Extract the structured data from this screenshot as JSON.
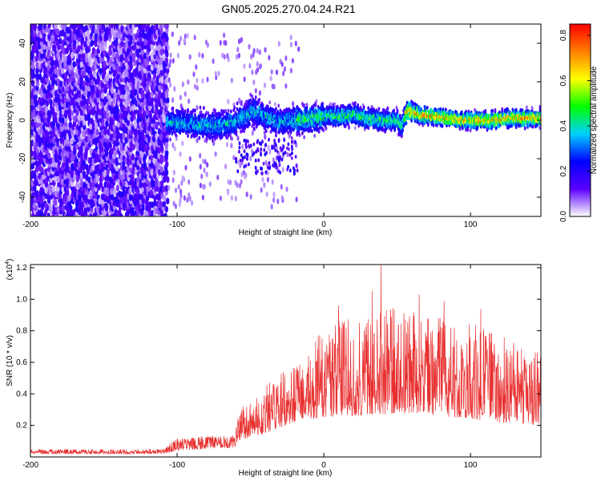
{
  "title": "GN05.2025.270.04.24.R21",
  "chart_data": [
    {
      "type": "heatmap",
      "name": "spectrogram",
      "xlabel": "Height of straight line (km)",
      "ylabel": "Frequency (Hz)",
      "xlim": [
        -200,
        148
      ],
      "ylim": [
        -50,
        50
      ],
      "xticks": [
        -200,
        -100,
        0,
        100
      ],
      "xtick_labels": [
        "-200",
        "-100",
        "0",
        "100"
      ],
      "yticks": [
        -40,
        -20,
        0,
        20,
        40
      ],
      "ytick_labels": [
        "-40",
        "-20",
        "0",
        "20",
        "40"
      ],
      "colorbar": {
        "label": "Normalized spectral amplitude",
        "range": [
          0,
          0.85
        ],
        "ticks": [
          0,
          0.2,
          0.4,
          0.6,
          0.8
        ],
        "tick_labels": [
          "0.0",
          "0.2",
          "0.4",
          "0.6",
          "0.8"
        ],
        "colormap": [
          "#ffffff",
          "#5a00ff",
          "#0000ff",
          "#00d0ff",
          "#00ff00",
          "#ffff00",
          "#ff7f00",
          "#ff0000"
        ]
      },
      "noise_region": {
        "x_range": [
          -200,
          -107
        ],
        "freq_range": [
          -50,
          50
        ],
        "max_amplitude": 0.2
      },
      "band_center": {
        "x": [
          -107,
          -90,
          -75,
          -60,
          -48,
          -40,
          -30,
          -20,
          -10,
          0,
          10,
          20,
          30,
          40,
          50,
          53,
          57,
          65,
          75,
          85,
          95,
          105,
          115,
          125,
          135,
          148
        ],
        "freq": [
          -1,
          -2,
          -3,
          -1,
          5,
          2,
          -1,
          0,
          1,
          2,
          2,
          3,
          1,
          0,
          0,
          -3,
          5,
          3,
          2,
          1,
          0,
          0,
          0,
          1,
          1,
          1
        ]
      }
    },
    {
      "type": "line",
      "name": "snr",
      "xlabel": "Height of straight line (km)",
      "ylabel": "SNR (10 * v/v)",
      "y_multiplier": "(x10",
      "y_multiplier_exp": "4",
      "xlim": [
        -200,
        148
      ],
      "ylim": [
        0,
        12200
      ],
      "xticks": [
        -200,
        -100,
        0,
        100
      ],
      "xtick_labels": [
        "-200",
        "-100",
        "0",
        "100"
      ],
      "yticks": [
        2000,
        4000,
        6000,
        8000,
        10000,
        12000
      ],
      "ytick_labels": [
        "0.2",
        "0.4",
        "0.6",
        "0.8",
        "1.0",
        "1.2"
      ],
      "color": "#e83030",
      "envelope": {
        "x": [
          -200,
          -110,
          -100,
          -60,
          -59,
          -40,
          -20,
          0,
          20,
          40,
          60,
          80,
          100,
          120,
          148
        ],
        "low": [
          200,
          200,
          400,
          600,
          1000,
          1500,
          2200,
          2500,
          2600,
          2700,
          2800,
          2600,
          2400,
          2200,
          2000
        ],
        "high": [
          500,
          500,
          1200,
          1400,
          3000,
          4500,
          6000,
          8200,
          9000,
          9800,
          9200,
          9000,
          8500,
          7800,
          6500
        ]
      },
      "peaks": [
        {
          "x": 39,
          "y": 12200
        },
        {
          "x": 33,
          "y": 10500
        },
        {
          "x": 65,
          "y": 10300
        },
        {
          "x": 82,
          "y": 9900
        },
        {
          "x": 107,
          "y": 9400
        },
        {
          "x": 10,
          "y": 9600
        }
      ]
    }
  ]
}
